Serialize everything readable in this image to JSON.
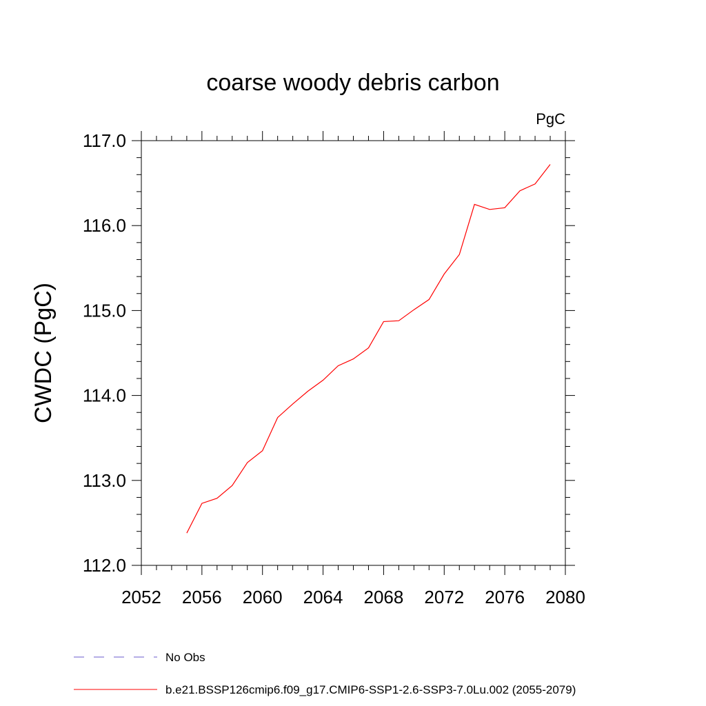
{
  "chart_data": {
    "type": "line",
    "title": "coarse woody debris carbon",
    "units_label": "PgC",
    "ylabel": "CWDC  (PgC)",
    "xlabel": "",
    "xlim": [
      2052,
      2080
    ],
    "ylim": [
      112.0,
      117.0
    ],
    "x_ticks": [
      2052,
      2056,
      2060,
      2064,
      2068,
      2072,
      2076,
      2080
    ],
    "y_ticks": [
      "112.0",
      "113.0",
      "114.0",
      "115.0",
      "116.0",
      "117.0"
    ],
    "grid": false,
    "legend_position": "bottom-left",
    "legend": [
      {
        "label": "No Obs",
        "color": "#6a5acd",
        "style": "dashed"
      },
      {
        "label": "b.e21.BSSP126cmip6.f09_g17.CMIP6-SSP1-2.6-SSP3-7.0Lu.002 (2055-2079)",
        "color": "#ff0000",
        "style": "solid"
      }
    ],
    "series": [
      {
        "color": "#ff0000",
        "x": [
          2055,
          2056,
          2057,
          2058,
          2059,
          2060,
          2061,
          2062,
          2063,
          2064,
          2065,
          2066,
          2067,
          2068,
          2069,
          2070,
          2071,
          2072,
          2073,
          2074,
          2075,
          2076,
          2077,
          2078,
          2079
        ],
        "values": [
          112.38,
          112.73,
          112.79,
          112.94,
          113.21,
          113.35,
          113.74,
          113.9,
          114.05,
          114.18,
          114.35,
          114.43,
          114.56,
          114.87,
          114.88,
          115.01,
          115.13,
          115.43,
          115.66,
          116.25,
          116.19,
          116.21,
          116.41,
          116.49,
          116.72
        ]
      }
    ]
  }
}
